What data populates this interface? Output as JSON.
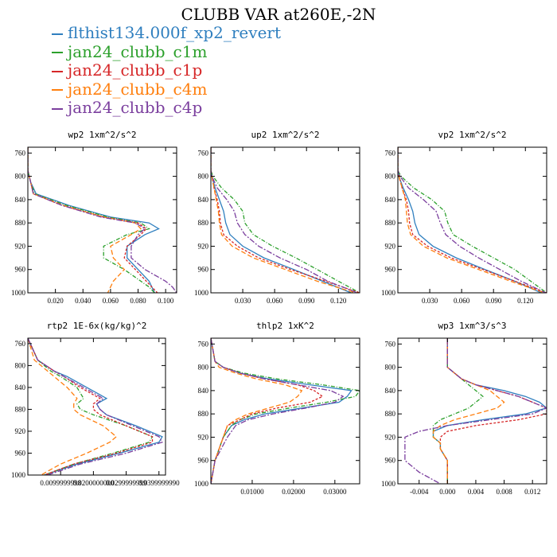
{
  "title": "CLUBB VAR at260E,-2N",
  "legend": [
    {
      "label": "flthist134.000f_xp2_revert",
      "color": "#2f7fbf"
    },
    {
      "label": "jan24_clubb_c1m",
      "color": "#2ca02c"
    },
    {
      "label": "jan24_clubb_c1p",
      "color": "#d62728"
    },
    {
      "label": "jan24_clubb_c4m",
      "color": "#ff7f0e"
    },
    {
      "label": "jan24_clubb_c4p",
      "color": "#7b3f9e"
    }
  ],
  "chart_data": [
    {
      "type": "line",
      "title": "wp2  1xm^2/s^2",
      "xlim": [
        0,
        0.108
      ],
      "ylim": [
        1000,
        750
      ],
      "yticks": [
        760,
        800,
        840,
        880,
        920,
        960,
        1000
      ],
      "xticks": [
        0.02,
        0.04,
        0.06,
        0.08,
        0.1
      ],
      "xtick_labels": [
        "0.020",
        "0.040",
        "0.060",
        "0.080",
        "0.100"
      ],
      "y": [
        750,
        790,
        810,
        830,
        850,
        870,
        880,
        890,
        900,
        920,
        940,
        960,
        980,
        990,
        1000
      ],
      "series": [
        {
          "values": [
            0,
            0,
            0.002,
            0.006,
            0.03,
            0.06,
            0.088,
            0.095,
            0.085,
            0.072,
            0.072,
            0.08,
            0.088,
            0.09,
            0.092
          ]
        },
        {
          "values": [
            0,
            0,
            0.002,
            0.005,
            0.028,
            0.058,
            0.082,
            0.088,
            0.072,
            0.055,
            0.055,
            0.07,
            0.082,
            0.088,
            0.092
          ]
        },
        {
          "values": [
            0,
            0,
            0.002,
            0.004,
            0.025,
            0.055,
            0.08,
            0.086,
            0.082,
            0.072,
            0.07,
            0.078,
            0.086,
            0.09,
            0.094
          ]
        },
        {
          "values": [
            0,
            0,
            0.002,
            0.004,
            0.026,
            0.055,
            0.078,
            0.082,
            0.075,
            0.06,
            0.062,
            0.07,
            0.062,
            0.06,
            0.058
          ]
        },
        {
          "values": [
            0,
            0,
            0.002,
            0.004,
            0.025,
            0.053,
            0.078,
            0.085,
            0.08,
            0.075,
            0.075,
            0.085,
            0.1,
            0.105,
            0.108
          ]
        }
      ]
    },
    {
      "type": "line",
      "title": "up2  1xm^2/s^2",
      "xlim": [
        0,
        0.14
      ],
      "ylim": [
        1000,
        750
      ],
      "yticks": [
        760,
        800,
        840,
        880,
        920,
        960,
        1000
      ],
      "xticks": [
        0.03,
        0.06,
        0.09,
        0.12
      ],
      "xtick_labels": [
        "0.030",
        "0.060",
        "0.090",
        "0.120"
      ],
      "y": [
        750,
        790,
        800,
        820,
        840,
        860,
        880,
        900,
        920,
        940,
        960,
        980,
        1000
      ],
      "series": [
        {
          "values": [
            0,
            0,
            0.001,
            0.004,
            0.008,
            0.012,
            0.014,
            0.018,
            0.03,
            0.05,
            0.078,
            0.105,
            0.132
          ]
        },
        {
          "values": [
            0,
            0,
            0.002,
            0.01,
            0.022,
            0.03,
            0.032,
            0.04,
            0.058,
            0.08,
            0.1,
            0.12,
            0.14
          ]
        },
        {
          "values": [
            0,
            0,
            0.001,
            0.003,
            0.006,
            0.008,
            0.009,
            0.012,
            0.025,
            0.045,
            0.075,
            0.108,
            0.14
          ]
        },
        {
          "values": [
            0,
            0,
            0.001,
            0.003,
            0.005,
            0.007,
            0.008,
            0.01,
            0.02,
            0.04,
            0.07,
            0.1,
            0.136
          ]
        },
        {
          "values": [
            0,
            0,
            0.001,
            0.006,
            0.015,
            0.022,
            0.025,
            0.032,
            0.045,
            0.065,
            0.09,
            0.11,
            0.138
          ]
        }
      ]
    },
    {
      "type": "line",
      "title": "vp2  1xm^2/s^2",
      "xlim": [
        0,
        0.14
      ],
      "ylim": [
        1000,
        750
      ],
      "yticks": [
        760,
        800,
        840,
        880,
        920,
        960,
        1000
      ],
      "xticks": [
        0.03,
        0.06,
        0.09,
        0.12
      ],
      "xtick_labels": [
        "0.030",
        "0.060",
        "0.090",
        "0.120"
      ],
      "y": [
        750,
        790,
        800,
        820,
        840,
        860,
        880,
        900,
        920,
        940,
        960,
        980,
        1000
      ],
      "series": [
        {
          "values": [
            0,
            0,
            0.001,
            0.005,
            0.01,
            0.014,
            0.016,
            0.02,
            0.033,
            0.055,
            0.082,
            0.11,
            0.135
          ]
        },
        {
          "values": [
            0,
            0,
            0.003,
            0.015,
            0.032,
            0.044,
            0.047,
            0.052,
            0.07,
            0.09,
            0.11,
            0.125,
            0.14
          ]
        },
        {
          "values": [
            0,
            0,
            0.001,
            0.004,
            0.008,
            0.01,
            0.011,
            0.014,
            0.028,
            0.05,
            0.08,
            0.11,
            0.14
          ]
        },
        {
          "values": [
            0,
            0,
            0.001,
            0.004,
            0.007,
            0.008,
            0.009,
            0.012,
            0.024,
            0.046,
            0.076,
            0.106,
            0.138
          ]
        },
        {
          "values": [
            0,
            0,
            0.002,
            0.01,
            0.024,
            0.036,
            0.04,
            0.045,
            0.058,
            0.076,
            0.096,
            0.116,
            0.139
          ]
        }
      ]
    },
    {
      "type": "line",
      "title": "rtp2  1E-6x(kg/kg)^2",
      "xlim": [
        0,
        0.042
      ],
      "ylim": [
        1000,
        750
      ],
      "yticks": [
        760,
        800,
        840,
        880,
        920,
        960,
        1000
      ],
      "xticks": [
        0.01,
        0.02,
        0.03,
        0.04
      ],
      "xtick_labels": [
        "0.0099999998",
        "0.0200000000",
        "0.0299999999",
        "0.0399999990"
      ],
      "y": [
        750,
        790,
        810,
        820,
        840,
        860,
        870,
        880,
        890,
        910,
        930,
        940,
        960,
        980,
        1000
      ],
      "series": [
        {
          "values": [
            0,
            0.003,
            0.008,
            0.012,
            0.018,
            0.024,
            0.021,
            0.022,
            0.024,
            0.033,
            0.041,
            0.04,
            0.028,
            0.015,
            0.005
          ]
        },
        {
          "values": [
            0,
            0.003,
            0.007,
            0.01,
            0.015,
            0.017,
            0.015,
            0.016,
            0.02,
            0.03,
            0.038,
            0.037,
            0.026,
            0.014,
            0.005
          ]
        },
        {
          "values": [
            0,
            0.003,
            0.008,
            0.011,
            0.016,
            0.022,
            0.02,
            0.02,
            0.022,
            0.03,
            0.038,
            0.038,
            0.027,
            0.014,
            0.005
          ]
        },
        {
          "values": [
            0,
            0.002,
            0.006,
            0.008,
            0.012,
            0.015,
            0.014,
            0.014,
            0.016,
            0.023,
            0.027,
            0.025,
            0.018,
            0.01,
            0.004
          ]
        },
        {
          "values": [
            0,
            0.003,
            0.008,
            0.011,
            0.017,
            0.023,
            0.021,
            0.022,
            0.024,
            0.032,
            0.04,
            0.041,
            0.03,
            0.016,
            0.006
          ]
        }
      ]
    },
    {
      "type": "line",
      "title": "thlp2  1xK^2",
      "xlim": [
        0,
        0.036
      ],
      "ylim": [
        1000,
        750
      ],
      "yticks": [
        760,
        800,
        840,
        880,
        920,
        960,
        1000
      ],
      "xticks": [
        0.01,
        0.02,
        0.03
      ],
      "xtick_labels": [
        "0.01000",
        "0.02000",
        "0.03000"
      ],
      "y": [
        750,
        790,
        800,
        810,
        820,
        830,
        840,
        850,
        860,
        870,
        880,
        890,
        900,
        920,
        960,
        1000
      ],
      "series": [
        {
          "values": [
            0,
            0.001,
            0.003,
            0.007,
            0.014,
            0.024,
            0.034,
            0.033,
            0.031,
            0.022,
            0.013,
            0.008,
            0.005,
            0.003,
            0.001,
            0
          ]
        },
        {
          "values": [
            0,
            0.001,
            0.003,
            0.008,
            0.016,
            0.027,
            0.036,
            0.035,
            0.028,
            0.019,
            0.011,
            0.007,
            0.005,
            0.003,
            0.001,
            0
          ]
        },
        {
          "values": [
            0,
            0.001,
            0.003,
            0.007,
            0.013,
            0.021,
            0.025,
            0.027,
            0.024,
            0.016,
            0.01,
            0.007,
            0.004,
            0.003,
            0.001,
            0
          ]
        },
        {
          "values": [
            0,
            0.001,
            0.002,
            0.006,
            0.011,
            0.018,
            0.022,
            0.021,
            0.019,
            0.014,
            0.009,
            0.006,
            0.004,
            0.003,
            0.001,
            0
          ]
        },
        {
          "values": [
            0,
            0.001,
            0.003,
            0.007,
            0.013,
            0.021,
            0.029,
            0.032,
            0.03,
            0.023,
            0.015,
            0.009,
            0.006,
            0.004,
            0.001,
            0
          ]
        }
      ]
    },
    {
      "type": "line",
      "title": "wp3  1xm^3/s^3",
      "xlim": [
        -0.007,
        0.014
      ],
      "ylim": [
        1000,
        750
      ],
      "yticks": [
        760,
        800,
        840,
        880,
        920,
        960,
        1000
      ],
      "xticks": [
        -0.004,
        0,
        0.004,
        0.008,
        0.012
      ],
      "xtick_labels": [
        "-0.004",
        "0.000",
        "0.004",
        "0.008",
        "0.012"
      ],
      "y": [
        750,
        790,
        800,
        810,
        820,
        830,
        840,
        850,
        860,
        870,
        880,
        890,
        900,
        910,
        920,
        930,
        940,
        960,
        980,
        1000
      ],
      "series": [
        {
          "values": [
            0,
            0,
            0,
            0.001,
            0.002,
            0.004,
            0.008,
            0.011,
            0.013,
            0.014,
            0.011,
            0.005,
            0,
            -0.002,
            -0.002,
            -0.001,
            -0.001,
            0,
            0,
            0
          ]
        },
        {
          "values": [
            0,
            0,
            0,
            0.001,
            0.002,
            0.003,
            0.004,
            0.005,
            0.004,
            0.003,
            0.001,
            -0.001,
            -0.002,
            -0.002,
            -0.002,
            -0.001,
            -0.001,
            0,
            0,
            0
          ]
        },
        {
          "values": [
            0,
            0,
            0,
            0.001,
            0.002,
            0.004,
            0.007,
            0.01,
            0.012,
            0.014,
            0.014,
            0.01,
            0.004,
            0,
            -0.001,
            -0.001,
            -0.001,
            0,
            0,
            0
          ]
        },
        {
          "values": [
            0,
            0,
            0,
            0.001,
            0.002,
            0.004,
            0.006,
            0.007,
            0.008,
            0.007,
            0.004,
            0.001,
            -0.001,
            -0.002,
            -0.002,
            -0.001,
            -0.001,
            0,
            0,
            0
          ]
        },
        {
          "values": [
            0,
            0,
            0,
            0.001,
            0.002,
            0.004,
            0.007,
            0.01,
            0.012,
            0.014,
            0.012,
            0.006,
            0,
            -0.004,
            -0.006,
            -0.006,
            -0.006,
            -0.006,
            -0.004,
            -0.001
          ]
        }
      ]
    }
  ]
}
